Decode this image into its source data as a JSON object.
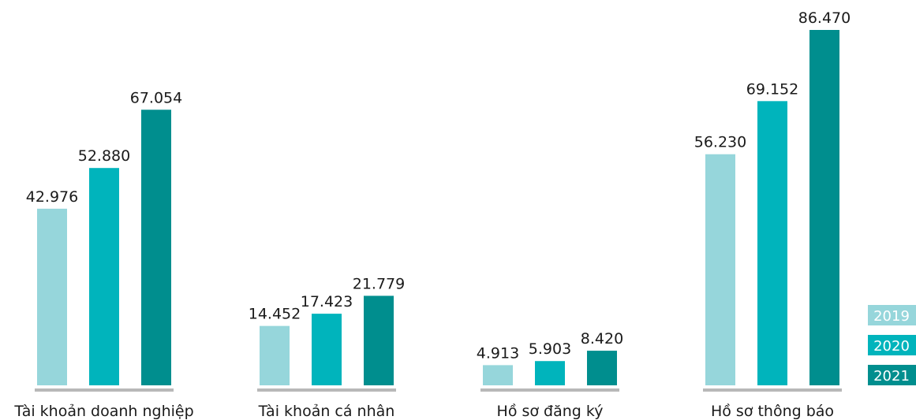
{
  "chart_data": {
    "type": "bar",
    "categories": [
      "Tài khoản doanh nghiệp",
      "Tài khoản cá nhân",
      "Hồ sơ đăng ký",
      "Hồ sơ thông báo"
    ],
    "series": [
      {
        "name": "2019",
        "color": "#96d6db",
        "values": [
          42976,
          14452,
          4913,
          56230
        ],
        "value_labels": [
          "42.976",
          "14.452",
          "4.913",
          "56.230"
        ]
      },
      {
        "name": "2020",
        "color": "#00b4bc",
        "values": [
          52880,
          17423,
          5903,
          69152
        ],
        "value_labels": [
          "52.880",
          "17.423",
          "5.903",
          "69.152"
        ]
      },
      {
        "name": "2021",
        "color": "#008e8e",
        "values": [
          67054,
          21779,
          8420,
          86470
        ],
        "value_labels": [
          "67.054",
          "21.779",
          "8.420",
          "86.470"
        ]
      }
    ]
  }
}
